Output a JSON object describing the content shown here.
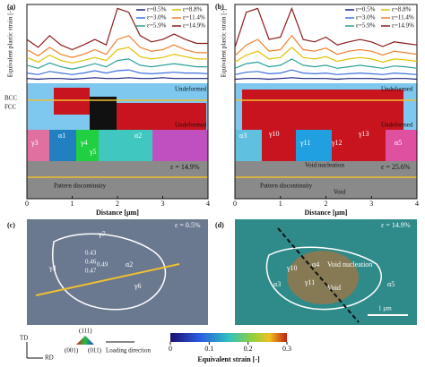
{
  "chart_data": [
    {
      "type": "line",
      "panel": "(a)",
      "ylabel": "Equivalent plastic strain [-]",
      "xlabel": "Distance [µm]",
      "x": [
        0,
        0.25,
        0.5,
        0.75,
        1,
        1.25,
        1.5,
        1.75,
        2,
        2.25,
        2.5,
        2.75,
        3,
        3.25,
        3.5,
        3.75,
        4
      ],
      "xlim": [
        0,
        4
      ],
      "xticks": [
        0,
        1,
        2,
        3,
        4
      ],
      "ylim": [
        0,
        1
      ],
      "series": [
        {
          "name": "ε=0.5%",
          "color": "#1a237e",
          "values": [
            0.05,
            0.04,
            0.05,
            0.05,
            0.04,
            0.05,
            0.06,
            0.05,
            0.05,
            0.06,
            0.05,
            0.05,
            0.06,
            0.05,
            0.05,
            0.05,
            0.05
          ]
        },
        {
          "name": "ε=3.0%",
          "color": "#3d6fe0",
          "values": [
            0.12,
            0.1,
            0.14,
            0.12,
            0.1,
            0.12,
            0.15,
            0.12,
            0.15,
            0.16,
            0.12,
            0.11,
            0.12,
            0.13,
            0.12,
            0.12,
            0.11
          ]
        },
        {
          "name": "ε=5.9%",
          "color": "#2aa198",
          "values": [
            0.22,
            0.18,
            0.25,
            0.2,
            0.17,
            0.2,
            0.24,
            0.2,
            0.28,
            0.3,
            0.22,
            0.2,
            0.22,
            0.24,
            0.22,
            0.2,
            0.2
          ]
        },
        {
          "name": "ε=8.8%",
          "color": "#e0c000",
          "values": [
            0.32,
            0.26,
            0.35,
            0.28,
            0.25,
            0.28,
            0.32,
            0.28,
            0.42,
            0.45,
            0.33,
            0.3,
            0.32,
            0.36,
            0.33,
            0.3,
            0.3
          ]
        },
        {
          "name": "ε=11.4%",
          "color": "#f08030",
          "values": [
            0.42,
            0.34,
            0.45,
            0.36,
            0.32,
            0.36,
            0.42,
            0.36,
            0.55,
            0.6,
            0.45,
            0.4,
            0.42,
            0.48,
            0.42,
            0.38,
            0.38
          ]
        },
        {
          "name": "ε=14.9%",
          "color": "#8b1a1a",
          "values": [
            0.55,
            0.45,
            0.6,
            0.48,
            0.42,
            0.48,
            0.55,
            0.48,
            0.95,
            0.9,
            0.6,
            0.52,
            0.55,
            0.62,
            0.55,
            0.5,
            0.5
          ]
        }
      ]
    },
    {
      "type": "line",
      "panel": "(b)",
      "ylabel": "Equivalent plastic strain [-]",
      "xlabel": "Distance [µm]",
      "x": [
        0,
        0.25,
        0.5,
        0.75,
        1,
        1.25,
        1.5,
        1.75,
        2,
        2.25,
        2.5,
        2.75,
        3,
        3.25,
        3.5,
        3.75,
        4
      ],
      "xlim": [
        0,
        4
      ],
      "xticks": [
        0,
        1,
        2,
        3,
        4
      ],
      "ylim": [
        0,
        1
      ],
      "series": [
        {
          "name": "ε=0.5%",
          "color": "#1a237e",
          "values": [
            0.04,
            0.05,
            0.05,
            0.04,
            0.05,
            0.06,
            0.05,
            0.05,
            0.05,
            0.04,
            0.05,
            0.05,
            0.05,
            0.04,
            0.05,
            0.05,
            0.04
          ]
        },
        {
          "name": "ε=3.0%",
          "color": "#3d6fe0",
          "values": [
            0.1,
            0.13,
            0.14,
            0.11,
            0.12,
            0.16,
            0.12,
            0.11,
            0.12,
            0.1,
            0.11,
            0.12,
            0.11,
            0.1,
            0.12,
            0.11,
            0.1
          ]
        },
        {
          "name": "ε=5.9%",
          "color": "#2aa198",
          "values": [
            0.18,
            0.24,
            0.26,
            0.2,
            0.22,
            0.3,
            0.22,
            0.2,
            0.22,
            0.18,
            0.2,
            0.22,
            0.2,
            0.18,
            0.21,
            0.2,
            0.18
          ]
        },
        {
          "name": "ε=8.8%",
          "color": "#e0c000",
          "values": [
            0.26,
            0.35,
            0.4,
            0.3,
            0.32,
            0.45,
            0.32,
            0.3,
            0.33,
            0.27,
            0.3,
            0.32,
            0.3,
            0.26,
            0.3,
            0.29,
            0.27
          ]
        },
        {
          "name": "ε=11.4%",
          "color": "#f08030",
          "values": [
            0.34,
            0.48,
            0.55,
            0.4,
            0.42,
            0.6,
            0.42,
            0.4,
            0.44,
            0.36,
            0.4,
            0.42,
            0.4,
            0.35,
            0.4,
            0.38,
            0.36
          ]
        },
        {
          "name": "ε=14.9%",
          "color": "#8b1a1a",
          "values": [
            0.45,
            0.9,
            0.95,
            0.55,
            0.58,
            0.95,
            0.55,
            0.52,
            0.58,
            0.48,
            0.52,
            0.55,
            0.52,
            0.46,
            0.52,
            0.5,
            0.48
          ]
        }
      ]
    }
  ],
  "phase_legend": [
    "BCC",
    "FCC"
  ],
  "panel_a": {
    "undeformed": [
      "Undeformed",
      "Undeformed"
    ],
    "grains": [
      "γ3",
      "α1",
      "γ4",
      "γ5",
      "α2"
    ],
    "strain": "ε = 14.9%",
    "note": "Pattern discontinuity"
  },
  "panel_b": {
    "undeformed": [
      "Undeformed",
      "Undeformed"
    ],
    "grains": [
      "α3",
      "γ10",
      "γ11",
      "γ12",
      "γ13",
      "α5"
    ],
    "strain": "ε = 25.6%",
    "void_nucleation": "Void nucleation",
    "note": "Pattern discontinuity",
    "void": "Void"
  },
  "panel_c": {
    "label": "(c)",
    "strain": "ε = 0.5%",
    "grains": [
      "γ7",
      "γ3",
      "γ6",
      "α2"
    ],
    "factors": [
      "0.43",
      "0.46",
      "0.47",
      "0.49"
    ]
  },
  "panel_d": {
    "label": "(d)",
    "strain": "ε = 14.9%",
    "grains": [
      "γ10",
      "α3",
      "α4",
      "γ11",
      "α5"
    ],
    "void_nucleation": "Void nucleation",
    "void": "Void",
    "scale": "1 µm"
  },
  "footer": {
    "td": "TD",
    "rd": "RD",
    "ipf": [
      "(111)",
      "(001)",
      "(011)"
    ],
    "loading": "Loading direction"
  },
  "colorbar": {
    "label": "Equivalent strain [-]",
    "lim": [
      0,
      0.3
    ],
    "ticks": [
      0,
      0.1,
      0.2,
      0.3
    ]
  }
}
